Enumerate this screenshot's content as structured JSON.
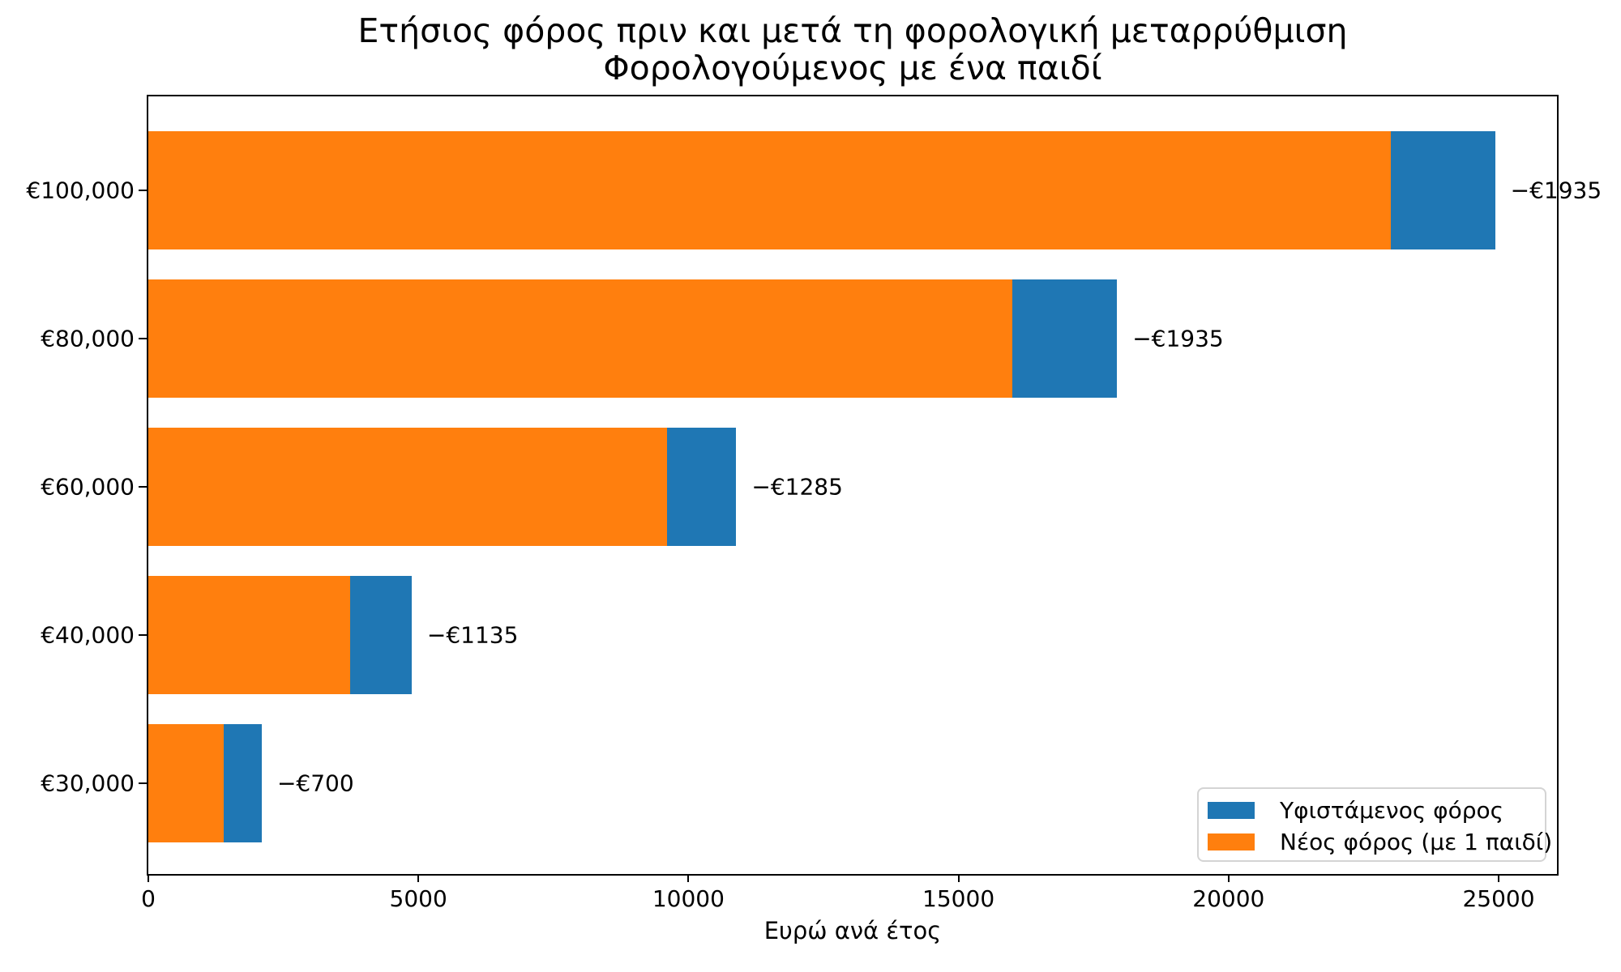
{
  "title": {
    "line1": "Ετήσιος φόρος πριν και μετά τη φορολογική μεταρρύθμιση",
    "line2": "Φορολογούμενος με ένα παιδί"
  },
  "xlabel": "Ευρώ ανά έτος",
  "legend": {
    "items": [
      {
        "label": "Υφιστάμενος φόρος",
        "color": "#1f77b4"
      },
      {
        "label": "Νέος φόρος (με 1 παιδί)",
        "color": "#ff7f0e"
      }
    ],
    "position": "lower right"
  },
  "colors": {
    "existing_tax": "#1f77b4",
    "new_tax": "#ff7f0e",
    "axis": "#000000",
    "legend_border": "#d4d4d4"
  },
  "chart_data": {
    "type": "bar",
    "orientation": "horizontal",
    "title": "Ετήσιος φόρος πριν και μετά τη φορολογική μεταρρύθμιση",
    "subtitle": "Φορολογούμενος με ένα παιδί",
    "xlabel": "Ευρώ ανά έτος",
    "categories": [
      "€100,000",
      "€80,000",
      "€60,000",
      "€40,000",
      "€30,000"
    ],
    "series": [
      {
        "name": "Υφιστάμενος φόρος",
        "color": "#1f77b4",
        "values": [
          24935,
          17935,
          10885,
          4875,
          2100
        ]
      },
      {
        "name": "Νέος φόρος (με 1 παιδί)",
        "color": "#ff7f0e",
        "values": [
          23000,
          16000,
          9600,
          3740,
          1400
        ]
      }
    ],
    "annotations": [
      "−€1935",
      "−€1935",
      "−€1285",
      "−€1135",
      "−€700"
    ],
    "x_ticks": [
      0,
      5000,
      10000,
      15000,
      20000,
      25000
    ],
    "x_tick_labels": [
      "0",
      "5000",
      "10000",
      "15000",
      "20000",
      "25000"
    ],
    "xlim": [
      0,
      26100
    ],
    "grid": false,
    "legend_position": "lower right",
    "bars_overlaid": true
  }
}
